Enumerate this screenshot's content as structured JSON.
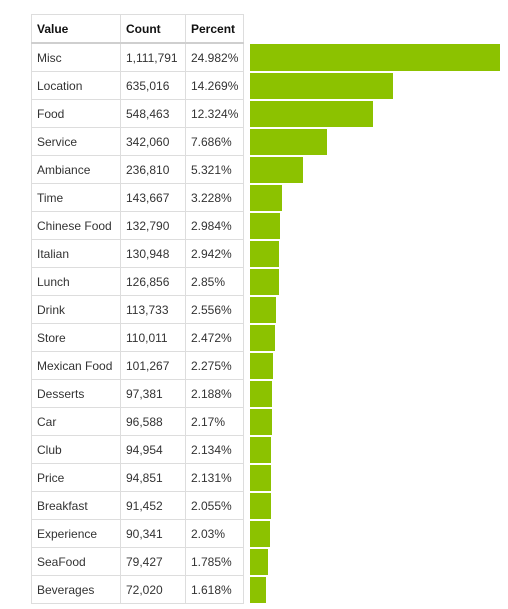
{
  "table": {
    "headers": {
      "value": "Value",
      "count": "Count",
      "percent": "Percent"
    },
    "rows": [
      {
        "value": "Misc",
        "count": "1,111,791",
        "percent": "24.982%",
        "pct": 24.982
      },
      {
        "value": "Location",
        "count": "635,016",
        "percent": "14.269%",
        "pct": 14.269
      },
      {
        "value": "Food",
        "count": "548,463",
        "percent": "12.324%",
        "pct": 12.324
      },
      {
        "value": "Service",
        "count": "342,060",
        "percent": "7.686%",
        "pct": 7.686
      },
      {
        "value": "Ambiance",
        "count": "236,810",
        "percent": "5.321%",
        "pct": 5.321
      },
      {
        "value": "Time",
        "count": "143,667",
        "percent": "3.228%",
        "pct": 3.228
      },
      {
        "value": "Chinese Food",
        "count": "132,790",
        "percent": "2.984%",
        "pct": 2.984
      },
      {
        "value": "Italian",
        "count": "130,948",
        "percent": "2.942%",
        "pct": 2.942
      },
      {
        "value": "Lunch",
        "count": "126,856",
        "percent": "2.85%",
        "pct": 2.85
      },
      {
        "value": "Drink",
        "count": "113,733",
        "percent": "2.556%",
        "pct": 2.556
      },
      {
        "value": "Store",
        "count": "110,011",
        "percent": "2.472%",
        "pct": 2.472
      },
      {
        "value": "Mexican Food",
        "count": "101,267",
        "percent": "2.275%",
        "pct": 2.275
      },
      {
        "value": "Desserts",
        "count": "97,381",
        "percent": "2.188%",
        "pct": 2.188
      },
      {
        "value": "Car",
        "count": "96,588",
        "percent": "2.17%",
        "pct": 2.17
      },
      {
        "value": "Club",
        "count": "94,954",
        "percent": "2.134%",
        "pct": 2.134
      },
      {
        "value": "Price",
        "count": "94,851",
        "percent": "2.131%",
        "pct": 2.131
      },
      {
        "value": "Breakfast",
        "count": "91,452",
        "percent": "2.055%",
        "pct": 2.055
      },
      {
        "value": "Experience",
        "count": "90,341",
        "percent": "2.03%",
        "pct": 2.03
      },
      {
        "value": "SeaFood",
        "count": "79,427",
        "percent": "1.785%",
        "pct": 1.785
      },
      {
        "value": "Beverages",
        "count": "72,020",
        "percent": "1.618%",
        "pct": 1.618
      }
    ]
  },
  "bar_color": "#8cc200"
}
